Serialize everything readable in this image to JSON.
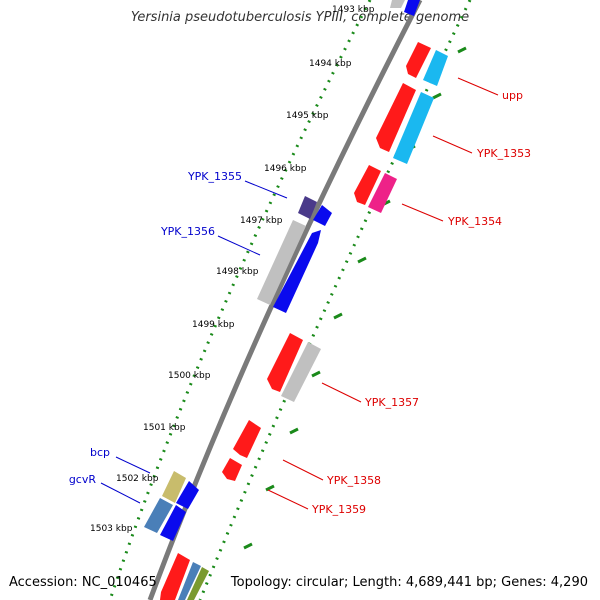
{
  "header": {
    "title": "Yersinia pseudotuberculosis YPIII, complete genome"
  },
  "footer": {
    "accession": "Accession: NC_010465",
    "topology": "Topology: circular; Length: 4,689,441 bp; Genes: 4,290"
  },
  "colors": {
    "backbone": "#808080",
    "ruler_dots": "#1a8a1a",
    "label_forward": "#0000cc",
    "label_reverse": "#dd0000",
    "gene_red": "#ff1a1a",
    "gene_blue": "#0a0aee",
    "gene_cyan": "#1ab8f0",
    "gene_magenta": "#ee2288",
    "gene_gray": "#c0c0c0",
    "gene_khaki": "#c8bc6c",
    "gene_steel": "#4a7fb8",
    "gene_darkslate": "#4a3a8a",
    "gene_olive": "#7a9a30"
  },
  "scale": {
    "ticks": [
      {
        "label": "1493 kbp"
      },
      {
        "label": "1494 kbp"
      },
      {
        "label": "1495 kbp"
      },
      {
        "label": "1496 kbp"
      },
      {
        "label": "1497 kbp"
      },
      {
        "label": "1498 kbp"
      },
      {
        "label": "1499 kbp"
      },
      {
        "label": "1500 kbp"
      },
      {
        "label": "1501 kbp"
      },
      {
        "label": "1502 kbp"
      },
      {
        "label": "1503 kbp"
      }
    ]
  },
  "gene_labels": {
    "forward": [
      "YPK_1355",
      "YPK_1356",
      "bcp",
      "gcvR"
    ],
    "reverse": [
      "upp",
      "YPK_1353",
      "YPK_1354",
      "YPK_1357",
      "YPK_1358",
      "YPK_1359"
    ]
  }
}
